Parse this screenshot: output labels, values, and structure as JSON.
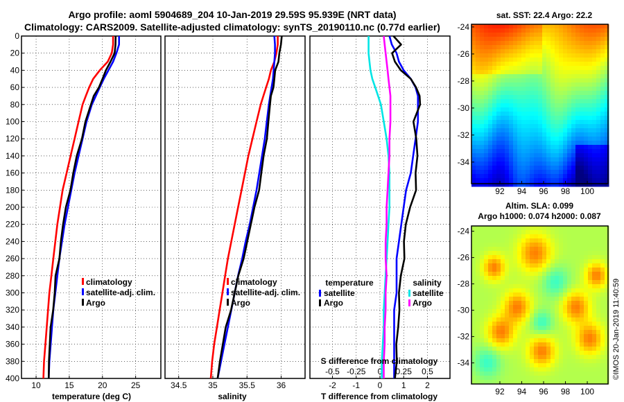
{
  "title_line1": "Argo profile: aoml 5904689_204 10-Jan-2019 29.59S 95.939E (NRT data)",
  "title_line2": "Climatology: CARS2009. Satellite-adjusted climatology: synTS_20190110.nc (0.77d earlier)",
  "watermark": "©IMOS 20-Jan-2019 11:40:59",
  "colors": {
    "climatology": "#ff0000",
    "satellite_adj": "#0000ff",
    "argo": "#000000",
    "salinity_diff_satellite": "#00e5e5",
    "salinity_diff_argo": "#ff00ff",
    "grid": "#000000"
  },
  "chart_data": [
    {
      "id": "temperature",
      "type": "line",
      "xlabel": "temperature (deg C)",
      "xlim": [
        7.8,
        28.8
      ],
      "xticks": [
        10,
        15,
        20,
        25
      ],
      "ylim": [
        0,
        400
      ],
      "yticks": [
        0,
        20,
        40,
        60,
        80,
        100,
        120,
        140,
        160,
        180,
        200,
        220,
        240,
        260,
        280,
        300,
        320,
        340,
        360,
        380,
        400
      ],
      "legend": [
        "climatology",
        "satellite-adj. clim.",
        "Argo"
      ],
      "depth": [
        0,
        10,
        20,
        30,
        40,
        50,
        60,
        70,
        80,
        100,
        120,
        140,
        160,
        180,
        200,
        220,
        240,
        260,
        280,
        300,
        320,
        340,
        360,
        380,
        400
      ],
      "series": [
        {
          "name": "climatology",
          "values": [
            21.6,
            21.6,
            21.4,
            20.8,
            19.6,
            18.6,
            18.0,
            17.5,
            17.0,
            16.4,
            15.8,
            15.2,
            14.6,
            14.0,
            13.6,
            13.2,
            12.9,
            12.6,
            12.3,
            12.0,
            11.8,
            11.6,
            11.4,
            11.2,
            11.1
          ]
        },
        {
          "name": "satellite-adj. clim.",
          "values": [
            22.5,
            22.5,
            22.1,
            21.6,
            20.9,
            20.2,
            19.6,
            19.0,
            18.4,
            17.6,
            17.0,
            16.4,
            15.8,
            15.3,
            14.8,
            14.3,
            13.9,
            13.5,
            13.2,
            12.9,
            12.6,
            12.4,
            12.2,
            12.0,
            11.9
          ]
        },
        {
          "name": "Argo",
          "values": [
            22.1,
            22.0,
            21.8,
            21.1,
            20.6,
            20.0,
            19.4,
            18.8,
            18.3,
            17.4,
            16.8,
            16.2,
            15.6,
            15.1,
            14.6,
            14.1,
            13.7,
            13.4,
            13.0,
            12.8,
            12.5,
            12.3,
            12.1,
            11.9,
            11.8
          ]
        }
      ]
    },
    {
      "id": "salinity",
      "type": "line",
      "xlabel": "salinity",
      "xlim": [
        34.3,
        36.35
      ],
      "xticks": [
        34.5,
        35,
        35.5,
        36
      ],
      "xtick_labels": [
        "34.5",
        "35",
        "35.5",
        "36"
      ],
      "ylim": [
        0,
        400
      ],
      "legend": [
        "climatology",
        "satellite-adj. clim.",
        "Argo"
      ],
      "depth": [
        0,
        10,
        20,
        30,
        40,
        50,
        60,
        70,
        80,
        100,
        120,
        140,
        160,
        180,
        200,
        220,
        240,
        260,
        280,
        300,
        320,
        340,
        360,
        380,
        400
      ],
      "series": [
        {
          "name": "climatology",
          "values": [
            35.95,
            35.95,
            35.93,
            35.9,
            35.85,
            35.82,
            35.78,
            35.74,
            35.7,
            35.64,
            35.58,
            35.52,
            35.47,
            35.42,
            35.37,
            35.32,
            35.27,
            35.22,
            35.18,
            35.14,
            35.1,
            35.06,
            35.02,
            34.99,
            34.97
          ]
        },
        {
          "name": "satellite-adj. clim.",
          "values": [
            35.9,
            35.91,
            35.91,
            35.9,
            35.89,
            35.88,
            35.86,
            35.84,
            35.82,
            35.79,
            35.76,
            35.72,
            35.68,
            35.64,
            35.59,
            35.54,
            35.48,
            35.43,
            35.37,
            35.32,
            35.27,
            35.22,
            35.17,
            35.12,
            35.07
          ]
        },
        {
          "name": "Argo",
          "values": [
            36.02,
            36.0,
            35.97,
            35.95,
            35.92,
            35.9,
            35.88,
            35.86,
            35.84,
            35.81,
            35.78,
            35.75,
            35.71,
            35.67,
            35.62,
            35.56,
            35.5,
            35.44,
            35.38,
            35.32,
            35.26,
            35.2,
            35.15,
            35.1,
            35.06
          ]
        }
      ]
    },
    {
      "id": "difference",
      "type": "line",
      "xlabel": "T difference from climatology",
      "xlabel_top": "S difference from climatology",
      "xlim": [
        -2.95,
        2.95
      ],
      "xticks": [
        -2,
        -1,
        0,
        1,
        2
      ],
      "xticks_top": [
        "-0.5",
        "-0.25",
        "0",
        "0.25",
        "0.5"
      ],
      "ylim": [
        0,
        400
      ],
      "legend_left_title": "temperature",
      "legend_right_title": "salinity",
      "legend_left": [
        "satellite",
        "Argo"
      ],
      "legend_right": [
        "satellite",
        "Argo"
      ],
      "depth": [
        0,
        10,
        20,
        30,
        40,
        50,
        60,
        70,
        80,
        100,
        120,
        140,
        160,
        180,
        200,
        220,
        240,
        260,
        280,
        300,
        320,
        340,
        360,
        380,
        400
      ],
      "series": [
        {
          "name": "T satellite",
          "values": [
            0.4,
            0.5,
            0.7,
            0.8,
            1.0,
            1.3,
            1.5,
            1.6,
            1.6,
            1.6,
            1.5,
            1.4,
            1.3,
            1.1,
            1.0,
            0.9,
            0.8,
            0.7,
            0.7,
            0.7,
            0.6,
            0.6,
            0.6,
            0.6,
            0.6
          ]
        },
        {
          "name": "T Argo",
          "values": [
            0.6,
            0.9,
            0.5,
            0.6,
            0.9,
            1.3,
            1.5,
            1.7,
            1.7,
            1.4,
            1.5,
            1.6,
            1.5,
            1.5,
            1.3,
            1.1,
            1.0,
            1.0,
            0.9,
            0.8,
            0.8,
            0.8,
            0.7,
            0.7,
            0.6
          ]
        },
        {
          "name": "S satellite",
          "values": [
            -0.12,
            -0.12,
            -0.12,
            -0.11,
            -0.1,
            -0.08,
            -0.05,
            -0.02,
            0.01,
            0.04,
            0.07,
            0.09,
            0.1,
            0.1,
            0.1,
            0.09,
            0.08,
            0.07,
            0.06,
            0.05,
            0.04,
            0.04,
            0.03,
            0.02,
            0.02
          ]
        },
        {
          "name": "S Argo",
          "values": [
            0.04,
            0.05,
            0.06,
            0.07,
            0.08,
            0.09,
            0.1,
            0.11,
            0.11,
            0.11,
            0.1,
            0.1,
            0.09,
            0.08,
            0.07,
            0.07,
            0.06,
            0.06,
            0.07,
            0.06,
            0.06,
            0.05,
            0.05,
            0.04,
            0.04
          ]
        }
      ]
    }
  ],
  "sst_map": {
    "title": "sat. SST: 22.4 Argo: 22.2",
    "xticks": [
      92,
      94,
      96,
      98,
      100
    ],
    "yticks": [
      -24,
      -26,
      -28,
      -30,
      -32,
      -34
    ],
    "xlim": [
      89.4,
      101.9
    ],
    "ylim": [
      -23.8,
      -35.6
    ]
  },
  "sla_map": {
    "title_line1": "Altim. SLA: 0.099",
    "title_line2": "Argo h1000: 0.074 h2000: 0.087",
    "xticks": [
      92,
      94,
      96,
      98,
      100
    ],
    "yticks": [
      -24,
      -26,
      -28,
      -30,
      -32,
      -34
    ],
    "xlim": [
      89.4,
      101.9
    ],
    "ylim": [
      -23.6,
      -35.6
    ]
  }
}
